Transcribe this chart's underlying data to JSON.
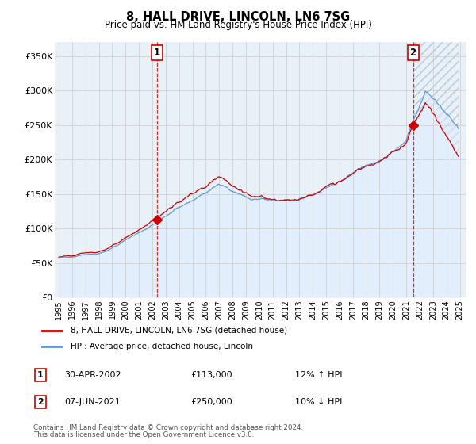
{
  "title": "8, HALL DRIVE, LINCOLN, LN6 7SG",
  "subtitle": "Price paid vs. HM Land Registry's House Price Index (HPI)",
  "ylabel_ticks": [
    "£0",
    "£50K",
    "£100K",
    "£150K",
    "£200K",
    "£250K",
    "£300K",
    "£350K"
  ],
  "ytick_values": [
    0,
    50000,
    100000,
    150000,
    200000,
    250000,
    300000,
    350000
  ],
  "ylim": [
    0,
    370000
  ],
  "xlim_left": 1994.7,
  "xlim_right": 2025.5,
  "marker1": {
    "year": 2002.33,
    "price": 113000,
    "label": "1",
    "date_str": "30-APR-2002",
    "price_str": "£113,000",
    "hpi_str": "12% ↑ HPI"
  },
  "marker2": {
    "year": 2021.5,
    "price": 250000,
    "label": "2",
    "date_str": "07-JUN-2021",
    "price_str": "£250,000",
    "hpi_str": "10% ↓ HPI"
  },
  "legend_line1": "8, HALL DRIVE, LINCOLN, LN6 7SG (detached house)",
  "legend_line2": "HPI: Average price, detached house, Lincoln",
  "footer1": "Contains HM Land Registry data © Crown copyright and database right 2024.",
  "footer2": "This data is licensed under the Open Government Licence v3.0.",
  "line_color_red": "#cc0000",
  "line_color_blue": "#6699cc",
  "fill_color_blue": "#ddeeff",
  "bg_color": "#ffffff",
  "grid_color": "#cccccc",
  "dashed_color": "#cc0000",
  "hatch_color": "#aabbcc"
}
